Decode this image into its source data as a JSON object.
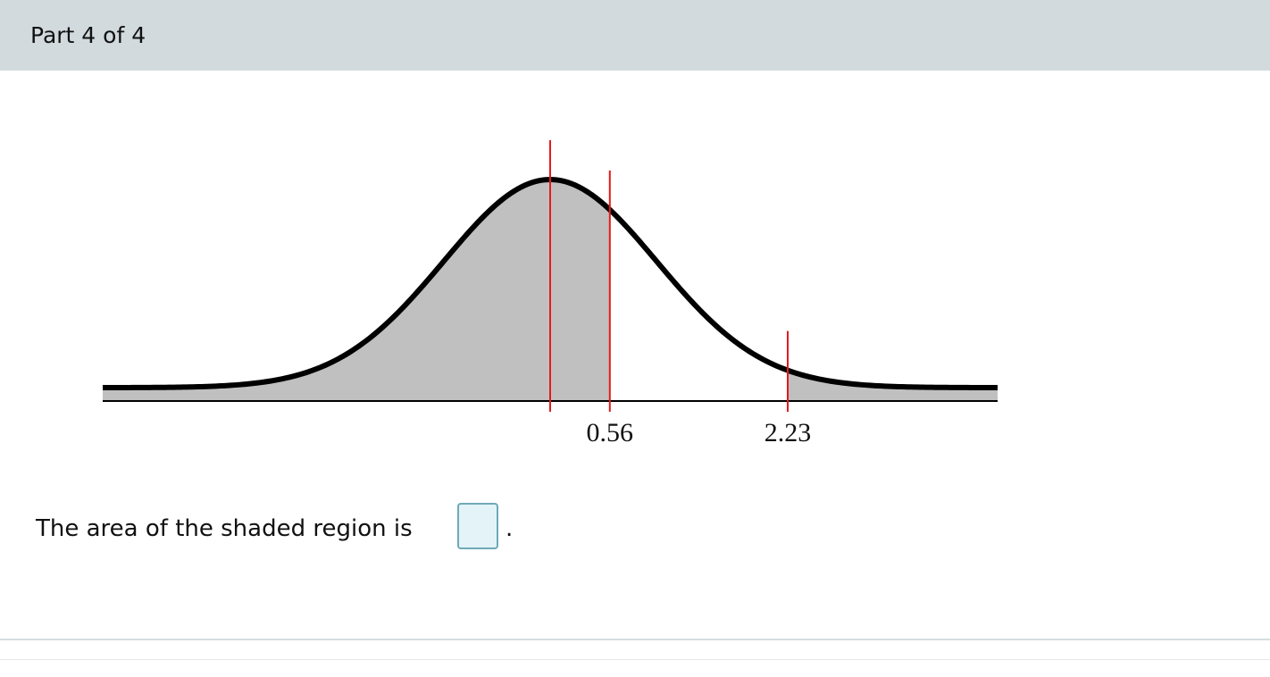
{
  "header": {
    "title": "Part 4 of 4"
  },
  "chart_data": {
    "type": "area",
    "distribution": "normal",
    "mean": 0,
    "sd": 1,
    "xlim": [
      -4.2,
      4.2
    ],
    "tick_labels": [
      "0.56",
      "2.23"
    ],
    "markers": [
      0,
      0.56,
      2.23
    ],
    "shaded_regions": [
      {
        "from": -4.2,
        "to": 0.56
      },
      {
        "from": 2.23,
        "to": 4.2
      }
    ],
    "colors": {
      "curve": "#000000",
      "shade": "#c0c0c0",
      "marker": "#e31a1c",
      "baseline": "#000000"
    }
  },
  "question": {
    "text": "The area of the shaded region is",
    "answer_value": "",
    "period": "."
  }
}
